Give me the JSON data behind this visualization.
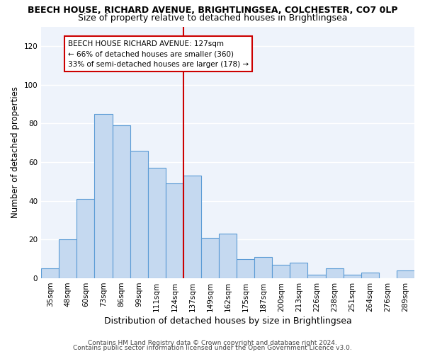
{
  "title": "BEECH HOUSE, RICHARD AVENUE, BRIGHTLINGSEA, COLCHESTER, CO7 0LP",
  "subtitle": "Size of property relative to detached houses in Brightlingsea",
  "xlabel": "Distribution of detached houses by size in Brightlingsea",
  "ylabel": "Number of detached properties",
  "footer_line1": "Contains HM Land Registry data © Crown copyright and database right 2024.",
  "footer_line2": "Contains public sector information licensed under the Open Government Licence v3.0.",
  "annotation_line1": "BEECH HOUSE RICHARD AVENUE: 127sqm",
  "annotation_line2": "← 66% of detached houses are smaller (360)",
  "annotation_line3": "33% of semi-detached houses are larger (178) →",
  "categories": [
    "35sqm",
    "48sqm",
    "60sqm",
    "73sqm",
    "86sqm",
    "99sqm",
    "111sqm",
    "124sqm",
    "137sqm",
    "149sqm",
    "162sqm",
    "175sqm",
    "187sqm",
    "200sqm",
    "213sqm",
    "226sqm",
    "238sqm",
    "251sqm",
    "264sqm",
    "276sqm",
    "289sqm"
  ],
  "values": [
    5,
    20,
    41,
    85,
    79,
    66,
    57,
    49,
    53,
    21,
    23,
    10,
    11,
    7,
    8,
    2,
    5,
    2,
    3,
    0,
    4
  ],
  "bar_color": "#c5d9f0",
  "bar_edge_color": "#5b9bd5",
  "vline_color": "#cc0000",
  "vline_index": 7,
  "annotation_box_edge": "#cc0000",
  "annotation_box_face": "#ffffff",
  "ylim": [
    0,
    130
  ],
  "yticks": [
    0,
    20,
    40,
    60,
    80,
    100,
    120
  ],
  "fig_background": "#ffffff",
  "plot_background": "#eef3fb",
  "title_fontsize": 9,
  "subtitle_fontsize": 9,
  "xlabel_fontsize": 9,
  "ylabel_fontsize": 8.5,
  "tick_fontsize": 7.5,
  "annotation_fontsize": 7.5,
  "footer_fontsize": 6.5
}
